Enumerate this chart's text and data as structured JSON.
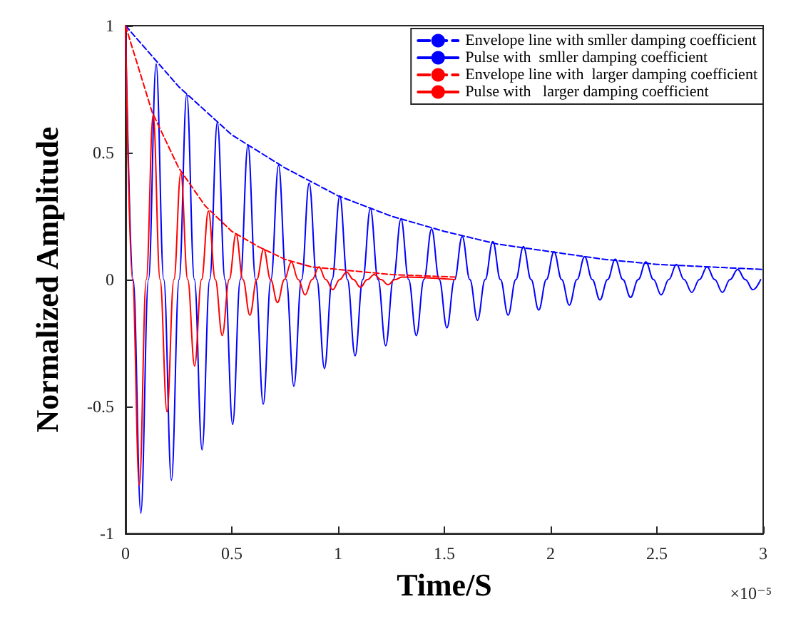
{
  "chart_data": {
    "type": "line",
    "xlabel": "Time/S",
    "ylabel": "Normalized Amplitude",
    "annotations": [
      "×10⁻⁵"
    ],
    "xlim": [
      0,
      3
    ],
    "xticks": [
      0,
      0.5,
      1,
      1.5,
      2,
      2.5,
      3
    ],
    "ylim": [
      -1,
      1
    ],
    "yticks": [
      -1,
      -0.5,
      0,
      0.5,
      1
    ],
    "grid": false,
    "legend": "top right",
    "marker": "none",
    "series": [
      {
        "name": "Envelope line with smller damping coefficient",
        "color": "#0000ff",
        "line_style": "dashed",
        "x": [
          0,
          0.25,
          0.5,
          0.75,
          1,
          1.25,
          1.5,
          1.75,
          2,
          2.25,
          2.5,
          2.75,
          3
        ],
        "values": [
          1,
          0.76,
          0.57,
          0.44,
          0.33,
          0.25,
          0.19,
          0.14,
          0.11,
          0.08,
          0.06,
          0.05,
          0.04
        ]
      },
      {
        "name": "Pulse with  smller damping coefficient",
        "color": "#0000ff",
        "line_style": "solid",
        "x": [
          0,
          0.036,
          0.072,
          0.108,
          0.144,
          0.18,
          0.216,
          0.252,
          0.288,
          0.324,
          0.36,
          0.396,
          0.432,
          0.468,
          0.504,
          0.54,
          0.576,
          0.612,
          0.648,
          0.684,
          0.72,
          0.756,
          0.792,
          0.828,
          0.864,
          0.9,
          0.936,
          0.972,
          1.008,
          1.044,
          1.08,
          1.116,
          1.152,
          1.188,
          1.224,
          1.26,
          1.296,
          1.332,
          1.368,
          1.404,
          1.44,
          1.476,
          1.512,
          1.548,
          1.584,
          1.62,
          1.656,
          1.692,
          1.728,
          1.764,
          1.8,
          1.836,
          1.872,
          1.908,
          1.944,
          1.98,
          2.016,
          2.052,
          2.088,
          2.124,
          2.16,
          2.196,
          2.232,
          2.268,
          2.304,
          2.34,
          2.376,
          2.412,
          2.448,
          2.484,
          2.52,
          2.556,
          2.592,
          2.628,
          2.664,
          2.7,
          2.736,
          2.772,
          2.808,
          2.844,
          2.88,
          2.916,
          2.952,
          2.988
        ],
        "values": [
          1,
          0,
          -0.92,
          0,
          0.85,
          0,
          -0.79,
          0,
          0.73,
          0,
          -0.67,
          0,
          0.62,
          0,
          -0.57,
          0,
          0.53,
          0,
          -0.49,
          0,
          0.45,
          0,
          -0.42,
          0,
          0.38,
          0,
          -0.35,
          0,
          0.33,
          0,
          -0.3,
          0,
          0.28,
          0,
          -0.26,
          0,
          0.24,
          0,
          -0.22,
          0,
          0.2,
          0,
          -0.19,
          0,
          0.17,
          0,
          -0.16,
          0,
          0.15,
          0,
          -0.14,
          0,
          0.13,
          0,
          -0.12,
          0,
          0.11,
          0,
          -0.1,
          0,
          0.09,
          0,
          -0.08,
          0,
          0.08,
          0,
          -0.07,
          0,
          0.07,
          0,
          -0.06,
          0,
          0.06,
          0,
          -0.05,
          0,
          0.05,
          0,
          -0.05,
          0,
          0.04,
          0,
          -0.04,
          0
        ]
      },
      {
        "name": "Envelope line with  larger damping coefficient",
        "color": "#ff0000",
        "line_style": "dashed",
        "x": [
          0,
          0.125,
          0.25,
          0.375,
          0.5,
          0.625,
          0.75,
          0.875,
          1,
          1.25,
          1.55
        ],
        "values": [
          1,
          0.66,
          0.44,
          0.29,
          0.19,
          0.13,
          0.08,
          0.05,
          0.04,
          0.02,
          0.01
        ]
      },
      {
        "name": "Pulse with   larger damping coefficient",
        "color": "#ff0000",
        "line_style": "solid",
        "x": [
          0,
          0.0325,
          0.065,
          0.0975,
          0.13,
          0.1625,
          0.195,
          0.2275,
          0.26,
          0.2925,
          0.325,
          0.3575,
          0.39,
          0.4225,
          0.455,
          0.4875,
          0.52,
          0.5525,
          0.585,
          0.6175,
          0.65,
          0.6825,
          0.715,
          0.7475,
          0.78,
          0.8125,
          0.845,
          0.8775,
          0.91,
          0.9425,
          0.975,
          1.0075,
          1.04,
          1.0725,
          1.105,
          1.1375,
          1.17,
          1.2025,
          1.235,
          1.2675,
          1.3,
          1.55
        ],
        "values": [
          1,
          0,
          -0.81,
          0,
          0.65,
          0,
          -0.52,
          0,
          0.42,
          0,
          -0.34,
          0,
          0.27,
          0,
          -0.22,
          0,
          0.18,
          0,
          -0.14,
          0,
          0.12,
          0,
          -0.09,
          0,
          0.07,
          0,
          -0.06,
          0,
          0.05,
          0,
          -0.04,
          0,
          0.03,
          0,
          -0.03,
          0,
          0.02,
          0,
          -0.02,
          0,
          0.01,
          0
        ]
      }
    ]
  }
}
